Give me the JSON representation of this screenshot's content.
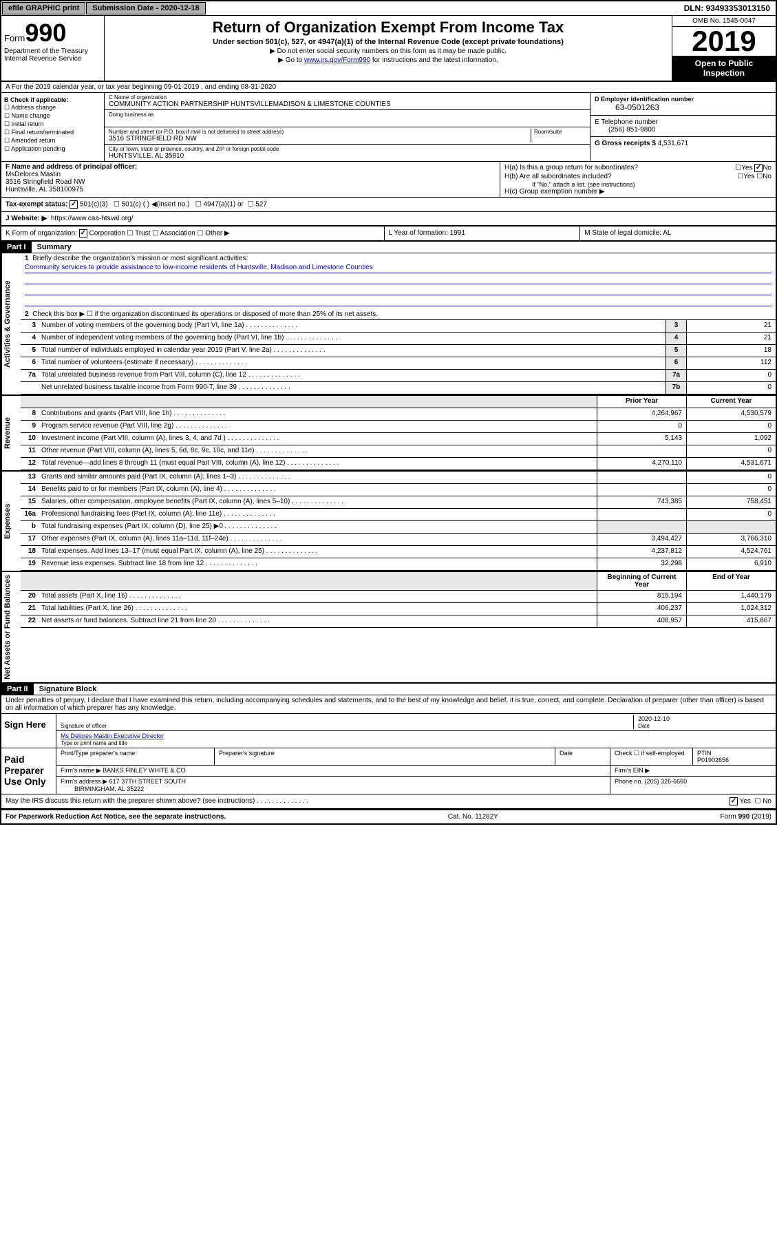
{
  "topbar": {
    "efile": "efile GRAPHIC print",
    "subdate_label": "Submission Date - 2020-12-18",
    "dln": "DLN: 93493353013150"
  },
  "header": {
    "form_prefix": "Form",
    "form_num": "990",
    "title": "Return of Organization Exempt From Income Tax",
    "sub": "Under section 501(c), 527, or 4947(a)(1) of the Internal Revenue Code (except private foundations)",
    "note1": "▶ Do not enter social security numbers on this form as it may be made public.",
    "note2_pre": "▶ Go to ",
    "note2_link": "www.irs.gov/Form990",
    "note2_post": " for instructions and the latest information.",
    "dept1": "Department of the Treasury",
    "dept2": "Internal Revenue Service",
    "omb": "OMB No. 1545-0047",
    "year": "2019",
    "open": "Open to Public Inspection"
  },
  "row_a": "A For the 2019 calendar year, or tax year beginning 09-01-2019    , and ending 08-31-2020",
  "b": {
    "label": "B Check if applicable:",
    "opts": [
      "Address change",
      "Name change",
      "Initial return",
      "Final return/terminated",
      "Amended return",
      "Application pending"
    ]
  },
  "c": {
    "name_lbl": "C Name of organization",
    "name_val": "COMMUNITY ACTION PARTNERSHIP HUNTSVILLEMADISON & LIMESTONE COUNTIES",
    "dba_lbl": "Doing business as",
    "addr_lbl": "Number and street (or P.O. box if mail is not delivered to street address)",
    "room_lbl": "Room/suite",
    "addr_val": "3516 STRINGFIELD RD NW",
    "city_lbl": "City or town, state or province, country, and ZIP or foreign postal code",
    "city_val": "HUNTSVILLE, AL  35810"
  },
  "d": {
    "lbl": "D Employer identification number",
    "val": "63-0501263"
  },
  "e": {
    "lbl": "E Telephone number",
    "val": "(256) 851-9800"
  },
  "g": {
    "lbl": "G Gross receipts $",
    "val": "4,531,671"
  },
  "f": {
    "lbl": "F  Name and address of principal officer:",
    "name": "MsDelores Mastin",
    "addr1": "3516 Stringfield Road NW",
    "addr2": "Huntsville, AL  358100975"
  },
  "h": {
    "a_lbl": "H(a)  Is this a group return for subordinates?",
    "b_lbl": "H(b)  Are all subordinates included?",
    "b_note": "If \"No,\" attach a list. (see instructions)",
    "c_lbl": "H(c)  Group exemption number ▶",
    "yes": "Yes",
    "no": "No"
  },
  "i": {
    "lbl": "Tax-exempt status:",
    "o1": "501(c)(3)",
    "o2": "501(c) (  ) ◀(insert no.)",
    "o3": "4947(a)(1) or",
    "o4": "527"
  },
  "j": {
    "lbl": "J   Website: ▶",
    "val": "https://www.caa-htsval.org/"
  },
  "k": {
    "lbl": "K Form of organization:",
    "o1": "Corporation",
    "o2": "Trust",
    "o3": "Association",
    "o4": "Other ▶"
  },
  "l": {
    "lbl": "L Year of formation:",
    "val": "1991"
  },
  "m": {
    "lbl": "M State of legal domicile:",
    "val": "AL"
  },
  "part1": {
    "hdr": "Part I",
    "title": "Summary"
  },
  "q1": {
    "num": "1",
    "text": "Briefly describe the organization's mission or most significant activities:",
    "mission": "Community services to provide assistance to low-income residents of Huntsville, Madison and Limestone Counties"
  },
  "q2": {
    "num": "2",
    "text": "Check this box ▶ ☐  if the organization discontinued its operations or disposed of more than 25% of its net assets."
  },
  "lines_gov": [
    {
      "n": "3",
      "t": "Number of voting members of the governing body (Part VI, line 1a)",
      "box": "3",
      "v": "21"
    },
    {
      "n": "4",
      "t": "Number of independent voting members of the governing body (Part VI, line 1b)",
      "box": "4",
      "v": "21"
    },
    {
      "n": "5",
      "t": "Total number of individuals employed in calendar year 2019 (Part V, line 2a)",
      "box": "5",
      "v": "18"
    },
    {
      "n": "6",
      "t": "Total number of volunteers (estimate if necessary)",
      "box": "6",
      "v": "112"
    },
    {
      "n": "7a",
      "t": "Total unrelated business revenue from Part VIII, column (C), line 12",
      "box": "7a",
      "v": "0"
    },
    {
      "n": "",
      "t": "Net unrelated business taxable income from Form 990-T, line 39",
      "box": "7b",
      "v": "0"
    }
  ],
  "col_hdrs": {
    "prior": "Prior Year",
    "current": "Current Year",
    "beg": "Beginning of Current Year",
    "end": "End of Year"
  },
  "lines_rev": [
    {
      "n": "8",
      "t": "Contributions and grants (Part VIII, line 1h)",
      "p": "4,264,967",
      "c": "4,530,579"
    },
    {
      "n": "9",
      "t": "Program service revenue (Part VIII, line 2g)",
      "p": "0",
      "c": "0"
    },
    {
      "n": "10",
      "t": "Investment income (Part VIII, column (A), lines 3, 4, and 7d )",
      "p": "5,143",
      "c": "1,092"
    },
    {
      "n": "11",
      "t": "Other revenue (Part VIII, column (A), lines 5, 6d, 8c, 9c, 10c, and 11e)",
      "p": "",
      "c": "0"
    },
    {
      "n": "12",
      "t": "Total revenue—add lines 8 through 11 (must equal Part VIII, column (A), line 12)",
      "p": "4,270,110",
      "c": "4,531,671"
    }
  ],
  "lines_exp": [
    {
      "n": "13",
      "t": "Grants and similar amounts paid (Part IX, column (A), lines 1–3)",
      "p": "",
      "c": "0"
    },
    {
      "n": "14",
      "t": "Benefits paid to or for members (Part IX, column (A), line 4)",
      "p": "",
      "c": "0"
    },
    {
      "n": "15",
      "t": "Salaries, other compensation, employee benefits (Part IX, column (A), lines 5–10)",
      "p": "743,385",
      "c": "758,451"
    },
    {
      "n": "16a",
      "t": "Professional fundraising fees (Part IX, column (A), line 11e)",
      "p": "",
      "c": "0"
    },
    {
      "n": "b",
      "t": "Total fundraising expenses (Part IX, column (D), line 25) ▶0",
      "p": "",
      "c": "",
      "shade": true
    },
    {
      "n": "17",
      "t": "Other expenses (Part IX, column (A), lines 11a–11d, 11f–24e)",
      "p": "3,494,427",
      "c": "3,766,310"
    },
    {
      "n": "18",
      "t": "Total expenses. Add lines 13–17 (must equal Part IX, column (A), line 25)",
      "p": "4,237,812",
      "c": "4,524,761"
    },
    {
      "n": "19",
      "t": "Revenue less expenses. Subtract line 18 from line 12",
      "p": "32,298",
      "c": "6,910"
    }
  ],
  "lines_net": [
    {
      "n": "20",
      "t": "Total assets (Part X, line 16)",
      "p": "815,194",
      "c": "1,440,179"
    },
    {
      "n": "21",
      "t": "Total liabilities (Part X, line 26)",
      "p": "406,237",
      "c": "1,024,312"
    },
    {
      "n": "22",
      "t": "Net assets or fund balances. Subtract line 21 from line 20",
      "p": "408,957",
      "c": "415,867"
    }
  ],
  "vtabs": {
    "gov": "Activities & Governance",
    "rev": "Revenue",
    "exp": "Expenses",
    "net": "Net Assets or Fund Balances"
  },
  "part2": {
    "hdr": "Part II",
    "title": "Signature Block"
  },
  "perjury": "Under penalties of perjury, I declare that I have examined this return, including accompanying schedules and statements, and to the best of my knowledge and belief, it is true, correct, and complete. Declaration of preparer (other than officer) is based on all information of which preparer has any knowledge.",
  "sign": {
    "here": "Sign Here",
    "sig_lbl": "Signature of officer",
    "date": "2020-12-10",
    "date_lbl": "Date",
    "name": "Ms Delores Mastin Executive Director",
    "name_lbl": "Type or print name and title"
  },
  "paid": {
    "title": "Paid Preparer Use Only",
    "prep_lbl": "Print/Type preparer's name",
    "sig_lbl": "Preparer's signature",
    "date_lbl": "Date",
    "self_lbl": "Check ☐ if self-employed",
    "ptin_lbl": "PTIN",
    "ptin": "P01902656",
    "firm_name_lbl": "Firm's name    ▶",
    "firm_name": "BANKS FINLEY WHITE & CO",
    "firm_ein_lbl": "Firm's EIN ▶",
    "firm_addr_lbl": "Firm's address ▶",
    "firm_addr1": "617 37TH STREET SOUTH",
    "firm_addr2": "BIRMINGHAM, AL  35222",
    "phone_lbl": "Phone no.",
    "phone": "(205) 326-6660"
  },
  "discuss": {
    "text": "May the IRS discuss this return with the preparer shown above? (see instructions)",
    "yes": "Yes",
    "no": "No"
  },
  "footer": {
    "left": "For Paperwork Reduction Act Notice, see the separate instructions.",
    "mid": "Cat. No. 11282Y",
    "right": "Form 990 (2019)"
  }
}
